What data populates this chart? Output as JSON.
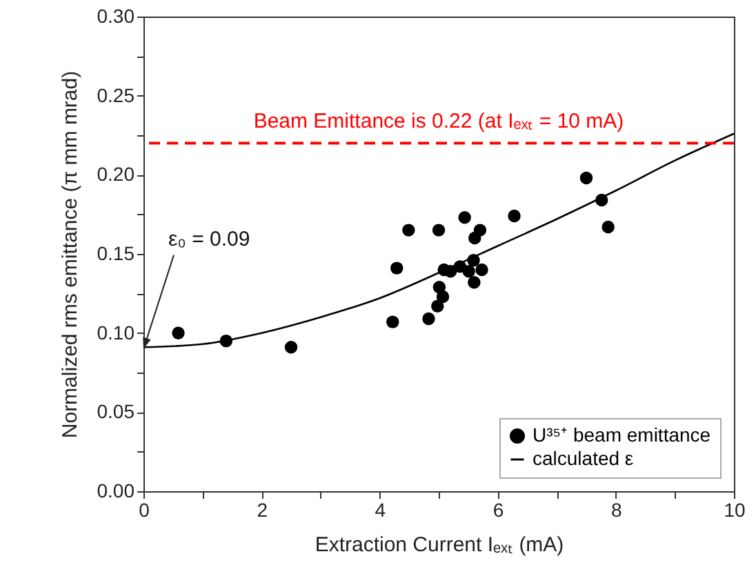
{
  "chart_data": {
    "type": "scatter",
    "xlabel": "Extraction Current Iₑₓₜ (mA)",
    "ylabel": "Normalized rms emittance (π mm mrad)",
    "xlim": [
      0,
      10
    ],
    "xticks": [
      0,
      {
        "value": 1,
        "label": null
      },
      2,
      {
        "value": 3,
        "label": null
      },
      4,
      {
        "value": 5,
        "label": null
      },
      6,
      {
        "value": 7,
        "label": null
      },
      8,
      {
        "value": 9,
        "label": null
      },
      10
    ],
    "ylim": [
      0,
      0.3
    ],
    "yticks": [
      {
        "value": 0,
        "label": "0.00"
      },
      {
        "value": 0.025,
        "label": null
      },
      {
        "value": 0.05,
        "label": "0.05"
      },
      {
        "value": 0.075,
        "label": null
      },
      {
        "value": 0.1,
        "label": "0.10"
      },
      {
        "value": 0.125,
        "label": null
      },
      {
        "value": 0.15,
        "label": "0.15"
      },
      {
        "value": 0.175,
        "label": null
      },
      {
        "value": 0.2,
        "label": "0.20"
      },
      {
        "value": 0.225,
        "label": null
      },
      {
        "value": 0.25,
        "label": "0.25"
      },
      {
        "value": 0.275,
        "label": null
      },
      {
        "value": 0.3,
        "label": "0.30"
      }
    ],
    "grid": false,
    "legend": "bottom right",
    "series": [
      {
        "name": "U³⁵⁺ beam emittance",
        "color": "#000000",
        "marker": "circle",
        "x": [
          0.59,
          1.4,
          2.5,
          4.22,
          4.29,
          4.49,
          4.83,
          4.98,
          5.0,
          5.01,
          5.07,
          5.09,
          5.2,
          5.36,
          5.44,
          5.51,
          5.59,
          5.6,
          5.61,
          5.7,
          5.73,
          6.28,
          7.5,
          7.76,
          7.87
        ],
        "values": [
          0.1,
          0.095,
          0.091,
          0.107,
          0.141,
          0.165,
          0.109,
          0.117,
          0.165,
          0.129,
          0.123,
          0.14,
          0.139,
          0.142,
          0.173,
          0.139,
          0.146,
          0.132,
          0.16,
          0.165,
          0.14,
          0.174,
          0.198,
          0.184,
          0.167
        ]
      },
      {
        "name": "calculated ε",
        "type": "line",
        "color": "#000000",
        "line_style": "solid",
        "marker": "none",
        "x": [
          0,
          1,
          2,
          3,
          4,
          5,
          6,
          7,
          8,
          9,
          10
        ],
        "values": [
          0.091,
          0.093,
          0.1,
          0.11,
          0.122,
          0.138,
          0.155,
          0.172,
          0.19,
          0.209,
          0.226
        ]
      }
    ],
    "ref_lines": [
      {
        "axis": "y",
        "value": 0.22,
        "label": "Beam Emittance is 0.22 (at Iₑₓₜ = 10 mA)",
        "color": "#ff0000",
        "line_style": "dashed"
      }
    ],
    "annotations": [
      {
        "text": "ε₀ = 0.09",
        "x": 0,
        "y": 0.09
      }
    ]
  }
}
